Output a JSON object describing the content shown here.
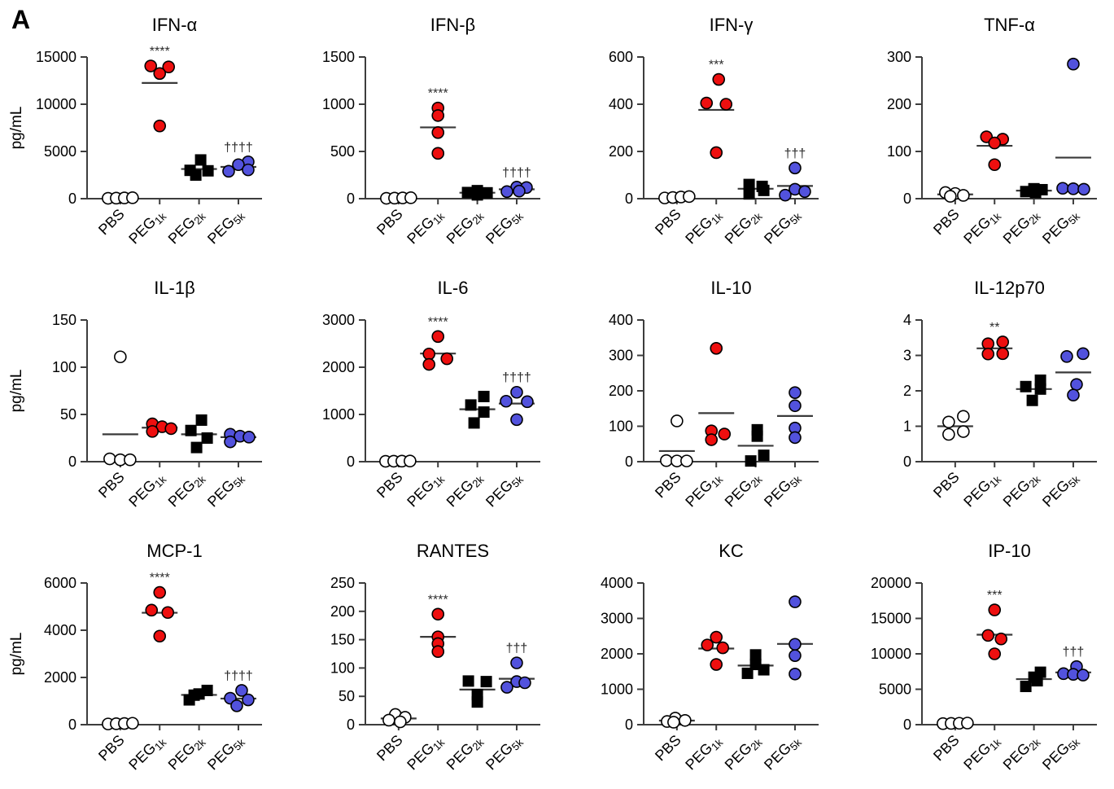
{
  "panel_label": "A",
  "y_axis_unit": "pg/mL",
  "colors": {
    "red": "#ee0f0f",
    "blue": "#5252dd",
    "black": "#000000",
    "white": "#ffffff",
    "axis": "#3d3d3d",
    "mean_line": "#3a3a3a",
    "annotation": "#2b2b2b"
  },
  "group_labels": [
    {
      "base": "PBS",
      "sub": ""
    },
    {
      "base": "PEG",
      "sub": "1k"
    },
    {
      "base": "PEG",
      "sub": "2k"
    },
    {
      "base": "PEG",
      "sub": "5k"
    }
  ],
  "group_markers": [
    "open-circle",
    "red-circle",
    "black-square",
    "blue-circle"
  ],
  "chart_data": [
    {
      "type": "scatter",
      "title": "IFN-α",
      "ylabel": "pg/mL",
      "yticks": [
        0,
        5000,
        10000,
        15000
      ],
      "groups": [
        {
          "label": "PBS",
          "values": [
            40,
            60,
            80,
            100
          ],
          "dx": [
            -15,
            -5,
            5,
            15
          ],
          "mean_line": 70,
          "sig": ""
        },
        {
          "label": "PEG 1k",
          "values": [
            14050,
            13950,
            13250,
            7700
          ],
          "dx": [
            -11,
            11,
            0,
            0
          ],
          "mean_line": 12250,
          "sig": "****"
        },
        {
          "label": "PEG 2k",
          "values": [
            4100,
            3000,
            2950,
            2500
          ],
          "dx": [
            2,
            -11,
            11,
            -4
          ],
          "mean_line": 3140,
          "sig": ""
        },
        {
          "label": "PEG 5k",
          "values": [
            3900,
            3600,
            3050,
            2900
          ],
          "dx": [
            12,
            0,
            12,
            -12
          ],
          "mean_line": 3360,
          "sig": "††††"
        }
      ]
    },
    {
      "type": "scatter",
      "title": "IFN-β",
      "ylabel": "pg/mL",
      "yticks": [
        0,
        500,
        1000,
        1500
      ],
      "groups": [
        {
          "label": "PBS",
          "values": [
            4,
            6,
            8,
            10
          ],
          "dx": [
            -15,
            -5,
            5,
            15
          ],
          "mean_line": 7,
          "sig": ""
        },
        {
          "label": "PEG 1k",
          "values": [
            960,
            880,
            700,
            480
          ],
          "dx": [
            0,
            0,
            0,
            0
          ],
          "mean_line": 755,
          "sig": "****"
        },
        {
          "label": "PEG 2k",
          "values": [
            85,
            65,
            62,
            40
          ],
          "dx": [
            0,
            -12,
            12,
            0
          ],
          "mean_line": 63,
          "sig": ""
        },
        {
          "label": "PEG 5k",
          "values": [
            122,
            118,
            80,
            75
          ],
          "dx": [
            0,
            12,
            3,
            -12
          ],
          "mean_line": 99,
          "sig": "††††"
        }
      ]
    },
    {
      "type": "scatter",
      "title": "IFN-γ",
      "ylabel": "pg/mL",
      "yticks": [
        0,
        200,
        400,
        600
      ],
      "groups": [
        {
          "label": "PBS",
          "values": [
            3,
            5,
            7,
            9
          ],
          "dx": [
            -15,
            -5,
            5,
            15
          ],
          "mean_line": 6,
          "sig": ""
        },
        {
          "label": "PEG 1k",
          "values": [
            505,
            405,
            400,
            195
          ],
          "dx": [
            3,
            -12,
            12,
            0
          ],
          "mean_line": 376,
          "sig": "***"
        },
        {
          "label": "PEG 2k",
          "values": [
            60,
            52,
            35,
            20
          ],
          "dx": [
            -8,
            8,
            10,
            -8
          ],
          "mean_line": 42,
          "sig": ""
        },
        {
          "label": "PEG 5k",
          "values": [
            130,
            40,
            30,
            15
          ],
          "dx": [
            0,
            0,
            12,
            -12
          ],
          "mean_line": 54,
          "sig": "†††"
        }
      ]
    },
    {
      "type": "scatter",
      "title": "TNF-α",
      "ylabel": "pg/mL",
      "yticks": [
        0,
        100,
        200,
        300
      ],
      "groups": [
        {
          "label": "PBS",
          "values": [
            13,
            11,
            5,
            7
          ],
          "dx": [
            -12,
            0,
            -6,
            10
          ],
          "mean_line": 9,
          "sig": ""
        },
        {
          "label": "PEG 1k",
          "values": [
            131,
            126,
            118,
            72
          ],
          "dx": [
            -10,
            10,
            0,
            0
          ],
          "mean_line": 112,
          "sig": ""
        },
        {
          "label": "PEG 2k",
          "values": [
            21,
            19,
            15,
            13
          ],
          "dx": [
            0,
            10,
            -10,
            2
          ],
          "mean_line": 17,
          "sig": ""
        },
        {
          "label": "PEG 5k",
          "values": [
            285,
            22,
            21,
            20
          ],
          "dx": [
            0,
            -13,
            0,
            13
          ],
          "mean_line": 87,
          "sig": ""
        }
      ]
    },
    {
      "type": "scatter",
      "title": "IL-1β",
      "ylabel": "pg/mL",
      "yticks": [
        0,
        50,
        100,
        150
      ],
      "groups": [
        {
          "label": "PBS",
          "values": [
            111,
            3,
            2,
            2
          ],
          "dx": [
            0,
            -13,
            0,
            12
          ],
          "mean_line": 29,
          "sig": ""
        },
        {
          "label": "PEG 1k",
          "values": [
            40,
            37,
            35,
            32
          ],
          "dx": [
            -9,
            3,
            14,
            -9
          ],
          "mean_line": 36,
          "sig": ""
        },
        {
          "label": "PEG 2k",
          "values": [
            44,
            33,
            25,
            15
          ],
          "dx": [
            3,
            -10,
            10,
            -3
          ],
          "mean_line": 29,
          "sig": ""
        },
        {
          "label": "PEG 5k",
          "values": [
            29,
            27,
            26,
            21
          ],
          "dx": [
            -10,
            2,
            13,
            -10
          ],
          "mean_line": 26,
          "sig": ""
        }
      ]
    },
    {
      "type": "scatter",
      "title": "IL-6",
      "ylabel": "pg/mL",
      "yticks": [
        0,
        1000,
        2000,
        3000
      ],
      "groups": [
        {
          "label": "PBS",
          "values": [
            8,
            10,
            12,
            14
          ],
          "dx": [
            -16,
            -6,
            4,
            14
          ],
          "mean_line": 11,
          "sig": ""
        },
        {
          "label": "PEG 1k",
          "values": [
            2650,
            2280,
            2180,
            2060
          ],
          "dx": [
            0,
            -11,
            11,
            -11
          ],
          "mean_line": 2290,
          "sig": "****"
        },
        {
          "label": "PEG 2k",
          "values": [
            1380,
            1200,
            1050,
            820
          ],
          "dx": [
            8,
            -8,
            8,
            -4
          ],
          "mean_line": 1110,
          "sig": ""
        },
        {
          "label": "PEG 5k",
          "values": [
            1470,
            1280,
            1270,
            890
          ],
          "dx": [
            0,
            -13,
            13,
            0
          ],
          "mean_line": 1230,
          "sig": "††††"
        }
      ]
    },
    {
      "type": "scatter",
      "title": "IL-10",
      "ylabel": "pg/mL",
      "yticks": [
        0,
        100,
        200,
        300,
        400
      ],
      "groups": [
        {
          "label": "PBS",
          "values": [
            115,
            3,
            2,
            2
          ],
          "dx": [
            0,
            -13,
            0,
            12
          ],
          "mean_line": 30,
          "sig": ""
        },
        {
          "label": "PEG 1k",
          "values": [
            320,
            87,
            78,
            62
          ],
          "dx": [
            0,
            -6,
            10,
            -6
          ],
          "mean_line": 137,
          "sig": ""
        },
        {
          "label": "PEG 2k",
          "values": [
            90,
            72,
            18,
            2
          ],
          "dx": [
            2,
            2,
            10,
            -6
          ],
          "mean_line": 45,
          "sig": ""
        },
        {
          "label": "PEG 5k",
          "values": [
            195,
            158,
            95,
            68
          ],
          "dx": [
            0,
            0,
            0,
            0
          ],
          "mean_line": 129,
          "sig": ""
        }
      ]
    },
    {
      "type": "scatter",
      "title": "IL-12p70",
      "ylabel": "pg/mL",
      "yticks": [
        0,
        1,
        2,
        3,
        4
      ],
      "groups": [
        {
          "label": "PBS",
          "values": [
            1.28,
            1.12,
            0.85,
            0.77
          ],
          "dx": [
            10,
            -8,
            10,
            -8
          ],
          "mean_line": 1.0,
          "sig": ""
        },
        {
          "label": "PEG 1k",
          "values": [
            3.38,
            3.33,
            3.05,
            3.04
          ],
          "dx": [
            10,
            -8,
            10,
            -8
          ],
          "mean_line": 3.2,
          "sig": "**"
        },
        {
          "label": "PEG 2k",
          "values": [
            2.3,
            2.12,
            2.05,
            1.73
          ],
          "dx": [
            8,
            -10,
            8,
            -2
          ],
          "mean_line": 2.05,
          "sig": ""
        },
        {
          "label": "PEG 5k",
          "values": [
            3.05,
            2.97,
            2.18,
            1.88
          ],
          "dx": [
            12,
            -8,
            4,
            0
          ],
          "mean_line": 2.52,
          "sig": ""
        }
      ]
    },
    {
      "type": "scatter",
      "title": "MCP-1",
      "ylabel": "pg/mL",
      "yticks": [
        0,
        2000,
        4000,
        6000
      ],
      "groups": [
        {
          "label": "PBS",
          "values": [
            30,
            40,
            50,
            60
          ],
          "dx": [
            -15,
            -5,
            5,
            15
          ],
          "mean_line": 45,
          "sig": ""
        },
        {
          "label": "PEG 1k",
          "values": [
            5600,
            4850,
            4750,
            3750
          ],
          "dx": [
            0,
            -10,
            10,
            0
          ],
          "mean_line": 4740,
          "sig": "****"
        },
        {
          "label": "PEG 2k",
          "values": [
            1450,
            1300,
            1250,
            1050
          ],
          "dx": [
            10,
            0,
            -6,
            -12
          ],
          "mean_line": 1260,
          "sig": ""
        },
        {
          "label": "PEG 5k",
          "values": [
            1450,
            1120,
            1050,
            800
          ],
          "dx": [
            4,
            -10,
            12,
            -2
          ],
          "mean_line": 1105,
          "sig": "††††"
        }
      ]
    },
    {
      "type": "scatter",
      "title": "RANTES",
      "ylabel": "pg/mL",
      "yticks": [
        0,
        50,
        100,
        150,
        200,
        250
      ],
      "groups": [
        {
          "label": "PBS",
          "values": [
            18,
            13,
            8,
            5
          ],
          "dx": [
            -4,
            8,
            -12,
            2
          ],
          "mean_line": 11,
          "sig": ""
        },
        {
          "label": "PEG 1k",
          "values": [
            195,
            155,
            143,
            129
          ],
          "dx": [
            0,
            0,
            0,
            0
          ],
          "mean_line": 155,
          "sig": "****"
        },
        {
          "label": "PEG 2k",
          "values": [
            77,
            76,
            53,
            40
          ],
          "dx": [
            -11,
            11,
            0,
            0
          ],
          "mean_line": 62,
          "sig": ""
        },
        {
          "label": "PEG 5k",
          "values": [
            109,
            76,
            74,
            66
          ],
          "dx": [
            0,
            0,
            10,
            -12
          ],
          "mean_line": 81,
          "sig": "†††"
        }
      ]
    },
    {
      "type": "scatter",
      "title": "KC",
      "ylabel": "pg/mL",
      "yticks": [
        0,
        1000,
        2000,
        3000,
        4000
      ],
      "groups": [
        {
          "label": "PBS",
          "values": [
            185,
            120,
            90,
            70
          ],
          "dx": [
            -2,
            10,
            -12,
            -4
          ],
          "mean_line": 115,
          "sig": ""
        },
        {
          "label": "PEG 1k",
          "values": [
            2470,
            2250,
            2170,
            1700
          ],
          "dx": [
            0,
            -11,
            8,
            0
          ],
          "mean_line": 2150,
          "sig": ""
        },
        {
          "label": "PEG 2k",
          "values": [
            1970,
            1700,
            1550,
            1450
          ],
          "dx": [
            0,
            0,
            10,
            -10
          ],
          "mean_line": 1670,
          "sig": ""
        },
        {
          "label": "PEG 5k",
          "values": [
            3470,
            2270,
            1950,
            1430
          ],
          "dx": [
            0,
            0,
            0,
            0
          ],
          "mean_line": 2280,
          "sig": ""
        }
      ]
    },
    {
      "type": "scatter",
      "title": "IP-10",
      "ylabel": "pg/mL",
      "yticks": [
        0,
        5000,
        10000,
        15000,
        20000
      ],
      "groups": [
        {
          "label": "PBS",
          "values": [
            150,
            180,
            200,
            230
          ],
          "dx": [
            -15,
            -5,
            5,
            15
          ],
          "mean_line": 190,
          "sig": ""
        },
        {
          "label": "PEG 1k",
          "values": [
            16200,
            12600,
            12100,
            10000
          ],
          "dx": [
            0,
            -8,
            8,
            0
          ],
          "mean_line": 12700,
          "sig": "***"
        },
        {
          "label": "PEG 2k",
          "values": [
            7400,
            6700,
            6200,
            5400
          ],
          "dx": [
            8,
            0,
            4,
            -10
          ],
          "mean_line": 6430,
          "sig": ""
        },
        {
          "label": "PEG 5k",
          "values": [
            8200,
            7200,
            7100,
            7000
          ],
          "dx": [
            4,
            -12,
            0,
            12
          ],
          "mean_line": 7380,
          "sig": "†††"
        }
      ]
    }
  ]
}
